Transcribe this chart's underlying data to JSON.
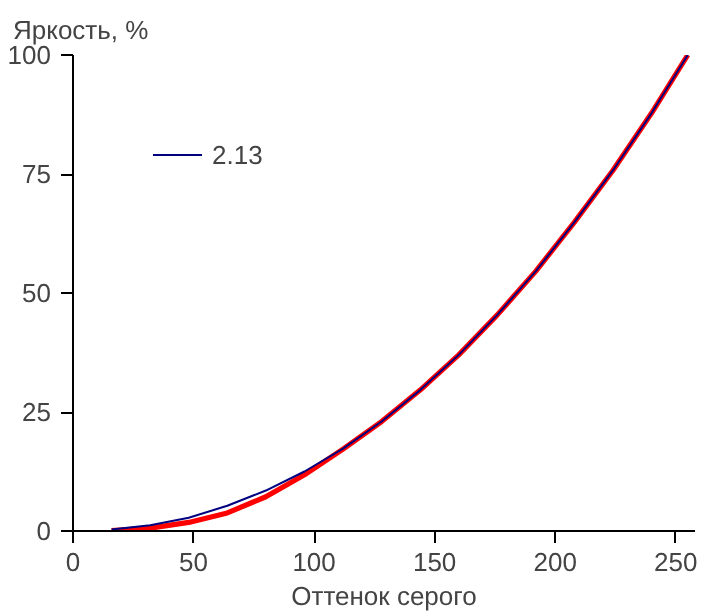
{
  "chart_data": {
    "type": "line",
    "xlabel": "Оттенок серого",
    "ylabel": "Яркость, %",
    "xlim": [
      0,
      258
    ],
    "ylim": [
      0,
      100
    ],
    "xticks": [
      0,
      50,
      100,
      150,
      200,
      250
    ],
    "yticks": [
      0,
      25,
      50,
      75,
      100
    ],
    "grid": false,
    "legend": "top left",
    "marker": "none",
    "line_style": "solid",
    "x": [
      16,
      32,
      48,
      64,
      80,
      96,
      112,
      128,
      144,
      160,
      176,
      192,
      208,
      224,
      240,
      255
    ],
    "series": [
      {
        "color": "#ff0000",
        "values": [
          0.1,
          0.6,
          1.8,
          3.8,
          7.2,
          11.8,
          17.2,
          23.0,
          29.6,
          37.0,
          45.4,
          54.6,
          64.9,
          75.8,
          87.8,
          100
        ]
      },
      {
        "name": "2.13",
        "color": "#000080",
        "values": [
          0.3,
          1.2,
          2.8,
          5.3,
          8.5,
          12.5,
          17.3,
          23.0,
          29.6,
          37.0,
          45.4,
          54.6,
          64.9,
          75.8,
          87.8,
          100
        ]
      }
    ]
  }
}
